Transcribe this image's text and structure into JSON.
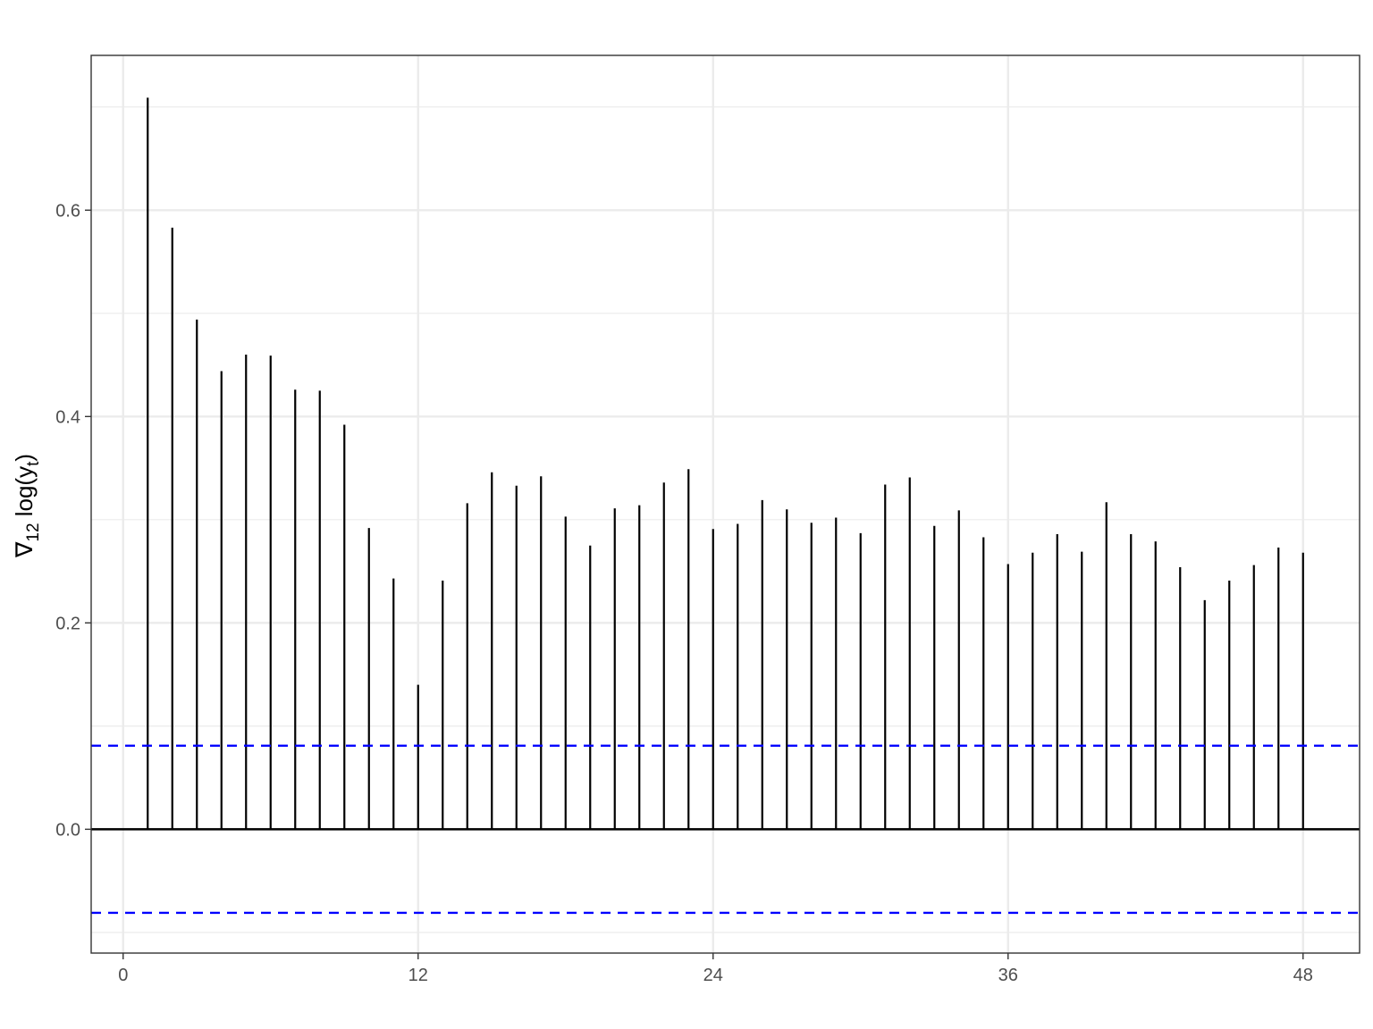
{
  "chart_data": {
    "type": "bar",
    "title": "",
    "xlabel": "",
    "ylabel": {
      "prefix": "∇",
      "prefix_sub": "12",
      "main": " log(y",
      "main_sub": "t",
      "suffix": ")"
    },
    "xlim": [
      -1.3,
      50.3
    ],
    "ylim": [
      -0.12,
      0.75
    ],
    "x_ticks": [
      0,
      12,
      24,
      36,
      48
    ],
    "x_tick_labels": [
      "0",
      "12",
      "24",
      "36",
      "48"
    ],
    "x_minor_ticks": [],
    "y_ticks": [
      0.0,
      0.2,
      0.4,
      0.6
    ],
    "y_tick_labels": [
      "0.0",
      "0.2",
      "0.4",
      "0.6"
    ],
    "y_minor_ticks": [
      -0.1,
      0.1,
      0.3,
      0.5,
      0.7
    ],
    "grid": true,
    "confidence_bounds": [
      0.081,
      -0.081
    ],
    "lags": [
      1,
      2,
      3,
      4,
      5,
      6,
      7,
      8,
      9,
      10,
      11,
      12,
      13,
      14,
      15,
      16,
      17,
      18,
      19,
      20,
      21,
      22,
      23,
      24,
      25,
      26,
      27,
      28,
      29,
      30,
      31,
      32,
      33,
      34,
      35,
      36,
      37,
      38,
      39,
      40,
      41,
      42,
      43,
      44,
      45,
      46,
      47,
      48
    ],
    "values": [
      0.709,
      0.583,
      0.494,
      0.444,
      0.46,
      0.459,
      0.426,
      0.425,
      0.392,
      0.292,
      0.243,
      0.14,
      0.241,
      0.316,
      0.346,
      0.333,
      0.342,
      0.303,
      0.275,
      0.311,
      0.314,
      0.336,
      0.349,
      0.291,
      0.296,
      0.319,
      0.31,
      0.297,
      0.302,
      0.287,
      0.334,
      0.341,
      0.294,
      0.309,
      0.283,
      0.257,
      0.268,
      0.286,
      0.269,
      0.317,
      0.286,
      0.279,
      0.254,
      0.222,
      0.241,
      0.256,
      0.273,
      0.268
    ],
    "colors": {
      "bars": "#000000",
      "zero_line": "#000000",
      "bounds": "#0000ff",
      "grid_major": "#ebebeb",
      "grid_minor": "#ebebeb",
      "panel_border": "#333333",
      "tick_label": "#4d4d4d"
    }
  }
}
